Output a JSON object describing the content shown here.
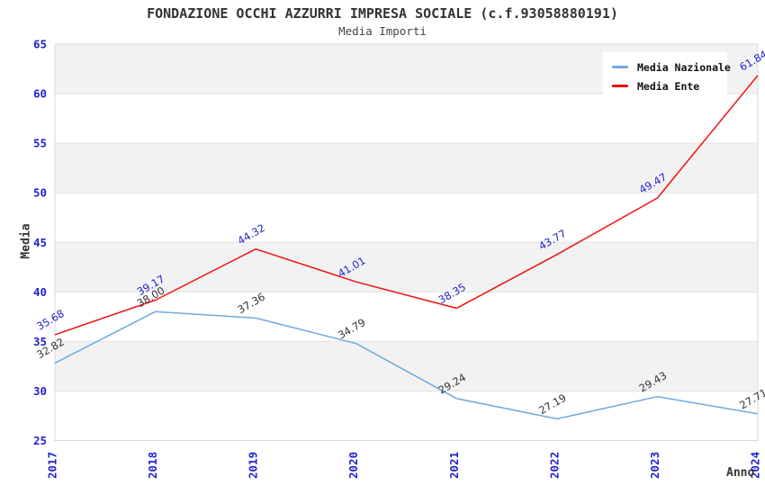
{
  "header": {
    "title": "FONDAZIONE OCCHI AZZURRI IMPRESA SOCIALE (c.f.93058880191)",
    "subtitle": "Media Importi"
  },
  "chart_data": {
    "type": "line",
    "title": "FONDAZIONE OCCHI AZZURRI IMPRESA SOCIALE (c.f.93058880191)",
    "subtitle": "Media Importi",
    "xlabel": "Anno",
    "ylabel": "Media",
    "categories": [
      "2017",
      "2018",
      "2019",
      "2020",
      "2021",
      "2022",
      "2023",
      "2024"
    ],
    "series": [
      {
        "name": "Media Nazionale",
        "color": "#6faadf",
        "label_color": "#333333",
        "values": [
          32.82,
          38.0,
          37.36,
          34.79,
          29.24,
          27.19,
          29.43,
          27.71
        ]
      },
      {
        "name": "Media Ente",
        "color": "#ee1111",
        "label_color": "#2222cc",
        "values": [
          35.68,
          39.17,
          44.32,
          41.01,
          38.35,
          43.77,
          49.47,
          61.84
        ]
      }
    ],
    "ylim": [
      25,
      65
    ],
    "y_ticks": [
      25,
      30,
      35,
      40,
      45,
      50,
      55,
      60,
      65
    ],
    "legend_position": "top-right",
    "grid": "horizontal",
    "point_labels_decimals": 2,
    "colors": {
      "band": "#f2f2f2",
      "grid": "#e2e2e2",
      "border": "#d9d9d9",
      "tick_label": "#2222cc",
      "axis_title": "#333333"
    }
  }
}
